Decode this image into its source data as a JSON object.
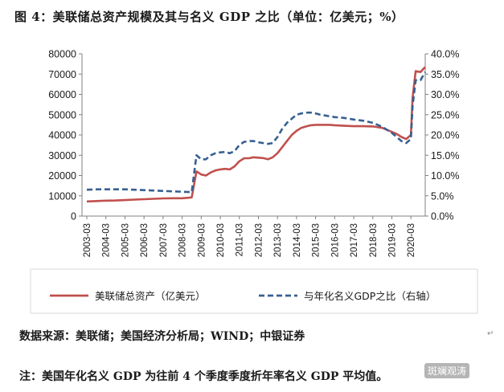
{
  "header": {
    "title": "图 4：美联储总资产规模及其与名义 GDP 之比（单位：亿美元；%）"
  },
  "footer": {
    "source": "数据来源：美联储；美国经济分析局；WIND；中银证券",
    "note": "注：美国年化名义 GDP 为往前 4 个季度季度折年率名义 GDP 平均值。",
    "watermark": "斑斓观涛"
  },
  "colors": {
    "assets": "#c0504d",
    "ratio": "#376092"
  },
  "chart_data": {
    "type": "line",
    "title": "美联储总资产规模及其与名义 GDP 之比",
    "x": [
      "2003-03",
      "2003-09",
      "2004-03",
      "2004-09",
      "2005-03",
      "2005-09",
      "2006-03",
      "2006-09",
      "2007-03",
      "2007-09",
      "2008-03",
      "2008-09",
      "2008-12",
      "2009-03",
      "2009-06",
      "2009-09",
      "2009-12",
      "2010-03",
      "2010-06",
      "2010-09",
      "2010-12",
      "2011-03",
      "2011-06",
      "2011-09",
      "2011-12",
      "2012-03",
      "2012-06",
      "2012-09",
      "2012-12",
      "2013-03",
      "2013-06",
      "2013-09",
      "2013-12",
      "2014-03",
      "2014-06",
      "2014-09",
      "2014-12",
      "2015-03",
      "2015-06",
      "2015-09",
      "2015-12",
      "2016-03",
      "2016-09",
      "2017-03",
      "2017-09",
      "2018-03",
      "2018-09",
      "2019-03",
      "2019-06",
      "2019-09",
      "2019-12",
      "2020-03",
      "2020-04",
      "2020-06",
      "2020-09",
      "2020-12"
    ],
    "xticks": [
      "2003-03",
      "2004-03",
      "2005-03",
      "2006-03",
      "2007-03",
      "2008-03",
      "2009-03",
      "2010-03",
      "2011-03",
      "2012-03",
      "2013-03",
      "2014-03",
      "2015-03",
      "2016-03",
      "2017-03",
      "2018-03",
      "2019-03",
      "2020-03"
    ],
    "series": [
      {
        "name": "美联储总资产（亿美元）",
        "axis": "left",
        "style": "solid",
        "values": [
          7200,
          7400,
          7600,
          7700,
          7900,
          8100,
          8300,
          8500,
          8700,
          8800,
          8800,
          9200,
          22000,
          20500,
          20000,
          21500,
          22500,
          23000,
          23300,
          23000,
          24500,
          27000,
          28500,
          28500,
          29000,
          28800,
          28600,
          28000,
          29000,
          31000,
          34000,
          37000,
          40000,
          42000,
          43500,
          44200,
          44800,
          45000,
          45000,
          45000,
          45000,
          44800,
          44500,
          44300,
          44300,
          44200,
          43500,
          41500,
          40500,
          39000,
          38000,
          40000,
          58000,
          71500,
          71000,
          73500
        ]
      },
      {
        "name": "与年化名义GDP之比（右轴）",
        "axis": "right",
        "style": "dashed",
        "values": [
          6.5,
          6.6,
          6.6,
          6.6,
          6.6,
          6.5,
          6.4,
          6.3,
          6.2,
          6.1,
          6.0,
          5.9,
          15.0,
          14.0,
          14.0,
          15.0,
          15.5,
          15.7,
          15.8,
          15.5,
          16.0,
          17.5,
          18.3,
          18.5,
          18.5,
          18.2,
          18.0,
          17.8,
          18.0,
          19.5,
          21.5,
          23.0,
          24.0,
          25.0,
          25.3,
          25.5,
          25.5,
          25.3,
          25.0,
          24.8,
          24.6,
          24.4,
          24.2,
          23.8,
          23.5,
          23.0,
          22.0,
          20.5,
          19.5,
          18.5,
          18.0,
          19.0,
          27.0,
          33.5,
          33.5,
          35.5
        ]
      }
    ],
    "left_axis": {
      "ticks": [
        "0",
        "10000",
        "20000",
        "30000",
        "40000",
        "50000",
        "60000",
        "70000",
        "80000"
      ],
      "ylim": [
        0,
        80000
      ]
    },
    "right_axis": {
      "ticks": [
        "0.0%",
        "5.0%",
        "10.0%",
        "15.0%",
        "20.0%",
        "25.0%",
        "30.0%",
        "35.0%",
        "40.0%"
      ],
      "ylim": [
        0,
        40
      ]
    },
    "legend": [
      {
        "label": "美联储总资产（亿美元）",
        "style": "solid"
      },
      {
        "label": "与年化名义GDP之比（右轴）",
        "style": "dashed"
      }
    ],
    "legend_position": "bottom",
    "grid": false
  }
}
